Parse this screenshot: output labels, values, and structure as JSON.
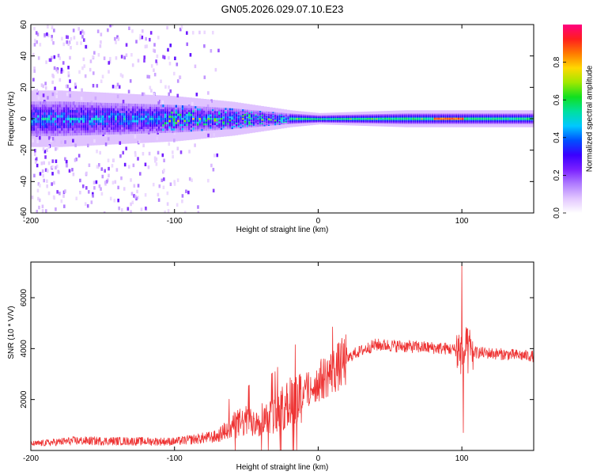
{
  "title": "GN05.2026.029.07.10.E23",
  "chart_data": [
    {
      "type": "heatmap",
      "name": "spectrogram",
      "xlabel": "Height of straight line (km)",
      "ylabel": "Frequency (Hz)",
      "xlim": [
        -200,
        150
      ],
      "ylim": [
        -60,
        60
      ],
      "xticks": [
        -200,
        -100,
        0,
        100
      ],
      "yticks": [
        -60,
        -40,
        -20,
        0,
        20,
        40,
        60
      ],
      "band_center_hz": 0,
      "band_halfwidth_hz": {
        "-180": 10,
        "-100": 8,
        "-60": 6,
        "-20": 3,
        "0": 2,
        "60": 3,
        "100": 3,
        "150": 3
      },
      "scatter_region_km": [
        -200,
        -70
      ],
      "peak_amplitude_km": [
        80,
        100
      ],
      "colorbar": {
        "label": "Normalized spectral amplitude",
        "range": [
          0.0,
          1.0
        ],
        "ticks": [
          "0.0",
          "0.2",
          "0.4",
          "0.6",
          "0.8"
        ],
        "colors": [
          "#ffffff",
          "#e2c6ff",
          "#b07cff",
          "#7a20ff",
          "#3a00ff",
          "#0050ff",
          "#00c8ff",
          "#00e0a0",
          "#10e020",
          "#a0e800",
          "#ffd800",
          "#ff7a00",
          "#ff1e1e",
          "#ff0080"
        ]
      }
    },
    {
      "type": "line",
      "name": "snr",
      "xlabel": "Height of straight line (km)",
      "ylabel": "SNR (10 * V/V)",
      "xlim": [
        -200,
        150
      ],
      "ylim": [
        0,
        7400
      ],
      "xticks": [
        -200,
        -100,
        0,
        100
      ],
      "yticks": [
        2000,
        4000,
        6000
      ],
      "color": "#ee3333",
      "envelope_km": [
        -200,
        -170,
        -100,
        -70,
        -60,
        -30,
        -10,
        10,
        25,
        40,
        90,
        100,
        110,
        150
      ],
      "envelope_snr": [
        250,
        380,
        350,
        550,
        1000,
        1400,
        2300,
        3100,
        3800,
        4150,
        4000,
        3900,
        3850,
        3700
      ],
      "spikes": [
        {
          "x": 100,
          "y": 7300
        },
        {
          "x": 101,
          "y": 700
        },
        {
          "x": 10,
          "y": 4850
        },
        {
          "x": -16,
          "y": 4150
        }
      ]
    }
  ]
}
